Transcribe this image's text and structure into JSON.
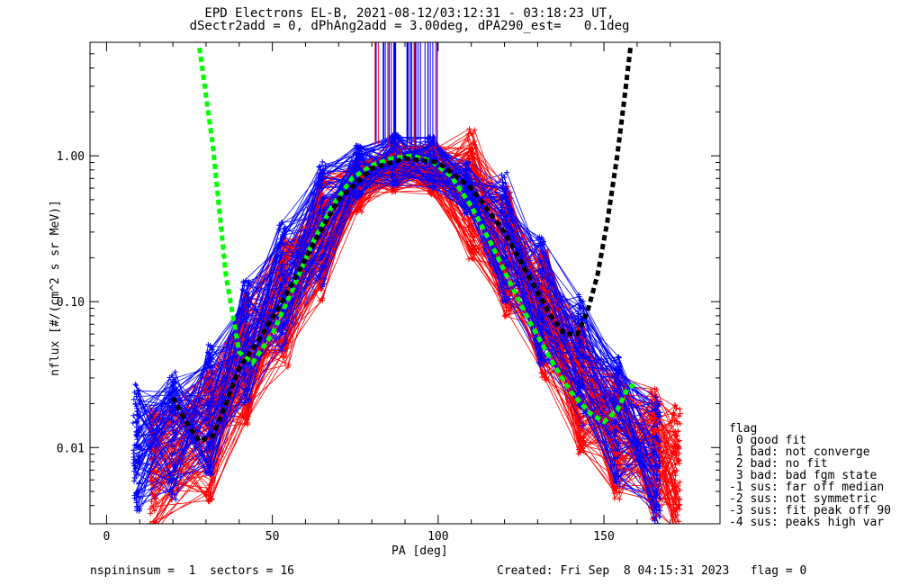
{
  "title_line1": "EPD Electrons EL-B, 2021-08-12/03:12:31 - 03:18:23 UT,",
  "title_line2": "dSectr2add = 0, dPhAng2add = 3.00deg, dPA290_est=   0.1deg",
  "footer_left": "nspininsum =  1  sectors = 16",
  "footer_right": "Created: Fri Sep  8 04:15:31 2023   flag = 0",
  "legend": {
    "title": "flag",
    "items": [
      " 0 good fit",
      " 1 bad: not converge",
      " 2 bad: no fit",
      " 3 bad: bad fgm state",
      "-1 sus: far off median",
      "-2 sus: not symmetric",
      "-3 sus: fit peak off 90",
      "-4 sus: peaks high var"
    ]
  },
  "colors": {
    "series_a": "#ff0000",
    "series_b": "#0000ff",
    "fit_green": "#00ff00",
    "fit_black": "#000000"
  },
  "chart_data": {
    "type": "line",
    "xlabel": "PA [deg]",
    "ylabel": "nflux [#/(cm^2 s sr MeV)]",
    "xlim": [
      -5,
      185
    ],
    "ylim": [
      0.003,
      6.0
    ],
    "yscale": "log",
    "x_ticks": [
      0,
      50,
      100,
      150
    ],
    "y_ticks": [
      0.01,
      0.1,
      1.0
    ],
    "y_tick_labels": [
      "0.01",
      "0.10",
      "1.00"
    ],
    "series": [
      {
        "color": "red",
        "x": [
          14,
          31,
          42,
          54,
          65,
          76,
          87,
          98,
          110,
          121,
          132,
          143,
          154,
          165,
          172
        ],
        "y": [
          0.0075,
          0.012,
          0.04,
          0.1,
          0.28,
          0.62,
          0.85,
          0.82,
          0.55,
          0.22,
          0.08,
          0.025,
          0.012,
          0.009,
          0.007
        ]
      },
      {
        "color": "blue",
        "x": [
          9,
          20,
          31,
          42,
          53,
          65,
          76,
          87,
          98,
          109,
          120,
          131,
          143,
          154,
          166
        ],
        "y": [
          0.01,
          0.012,
          0.018,
          0.05,
          0.13,
          0.35,
          0.78,
          0.93,
          0.9,
          0.6,
          0.28,
          0.1,
          0.04,
          0.015,
          0.008
        ]
      },
      {
        "color": "green",
        "x": [
          28,
          32,
          36,
          40,
          44,
          50,
          56,
          62,
          68,
          74,
          80,
          86,
          92,
          98,
          104,
          110,
          116,
          122,
          128,
          134,
          140,
          146,
          150,
          154,
          157,
          160
        ],
        "y": [
          5.5,
          1.2,
          0.15,
          0.045,
          0.038,
          0.06,
          0.12,
          0.25,
          0.45,
          0.7,
          0.86,
          0.96,
          1.0,
          0.92,
          0.72,
          0.45,
          0.25,
          0.13,
          0.07,
          0.04,
          0.024,
          0.017,
          0.015,
          0.018,
          0.025,
          0.028
        ]
      },
      {
        "color": "black",
        "x": [
          20,
          24,
          28,
          32,
          36,
          40,
          46,
          54,
          62,
          70,
          80,
          90,
          100,
          110,
          120,
          128,
          134,
          138,
          142,
          145,
          148,
          151,
          154,
          156,
          158
        ],
        "y": [
          0.022,
          0.015,
          0.011,
          0.012,
          0.02,
          0.035,
          0.055,
          0.11,
          0.24,
          0.5,
          0.82,
          0.96,
          0.9,
          0.6,
          0.3,
          0.14,
          0.08,
          0.06,
          0.06,
          0.085,
          0.15,
          0.35,
          1.0,
          2.3,
          5.5
        ]
      }
    ]
  }
}
